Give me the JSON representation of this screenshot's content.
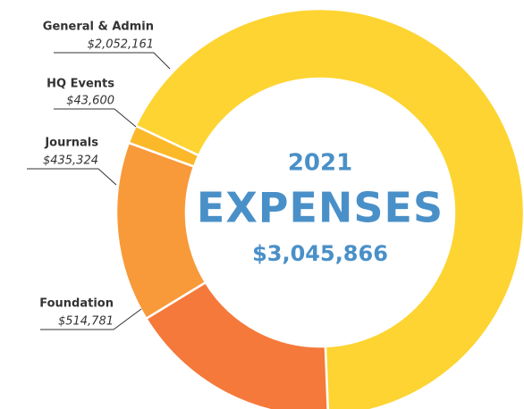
{
  "chart_data": {
    "type": "donut",
    "categories": [
      "General & Admin",
      "HQ Events",
      "Journals",
      "Foundation"
    ],
    "values": [
      2052161,
      43600,
      435324,
      514781
    ],
    "value_labels": [
      "$2,052,161",
      "$43,600",
      "$435,324",
      "$514,781"
    ],
    "colors": [
      "#fdd431",
      "#fbb829",
      "#f89a3a",
      "#f5793a"
    ],
    "center": {
      "year": "2021",
      "title": "EXPENSES",
      "total": "$3,045,866"
    }
  }
}
